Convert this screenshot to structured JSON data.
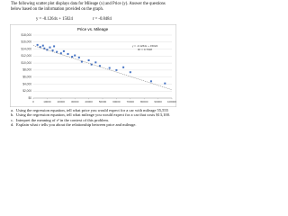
{
  "intro": "The following scatter plot displays data for Mileage (x) and Price (y).  Answer the questions below based on the information provided on the graph.",
  "equation": "y = -0.1264x + 15024",
  "correlation": "r = -0.8484",
  "chart_data": {
    "type": "scatter",
    "title": "Price vs. Mileage",
    "x": [
      3000,
      5000,
      7000,
      8000,
      10000,
      12000,
      14000,
      15000,
      17000,
      20000,
      22000,
      25000,
      28000,
      30000,
      33000,
      35000,
      40000,
      42000,
      45000,
      48000,
      55000,
      60000,
      65000,
      70000,
      85000,
      95000
    ],
    "series": [
      {
        "name": "Price",
        "color": "#4472c4",
        "values": [
          15200,
          14600,
          15000,
          14200,
          13800,
          14500,
          13600,
          14800,
          13200,
          12800,
          13400,
          12600,
          11800,
          12200,
          11600,
          10400,
          10800,
          9600,
          10200,
          9200,
          8600,
          8000,
          8800,
          7400,
          4800,
          4200
        ]
      }
    ],
    "trendline": {
      "slope": -0.1264,
      "intercept": 15024,
      "label": "y = -0.1264x + 15024",
      "r2_label": "R² = 0.7198"
    },
    "xlim": [
      0,
      100000
    ],
    "xticks": [
      0,
      10000,
      20000,
      30000,
      40000,
      50000,
      60000,
      70000,
      80000,
      90000,
      100000
    ],
    "ylim": [
      0,
      18000
    ],
    "yticks": [
      {
        "value": 0,
        "label": "$0"
      },
      {
        "value": 2000,
        "label": "$2,000"
      },
      {
        "value": 4000,
        "label": "$4,000"
      },
      {
        "value": 6000,
        "label": "$6,000"
      },
      {
        "value": 8000,
        "label": "$8,000"
      },
      {
        "value": 10000,
        "label": "$10,000"
      },
      {
        "value": 12000,
        "label": "$12,000"
      },
      {
        "value": 14000,
        "label": "$14,000"
      },
      {
        "value": 16000,
        "label": "$16,000"
      },
      {
        "value": 18000,
        "label": "$18,000"
      }
    ],
    "grid": true
  },
  "questions": [
    {
      "letter": "a.",
      "text": "Using the regression equation, tell what price you would expect for a car with mileage 55,555"
    },
    {
      "letter": "b.",
      "text": "Using the regression equation, tell what mileage you would expect for a car that costs $13,100."
    },
    {
      "letter": "c.",
      "text": "Interpret the meaning of r² in the context of this problem."
    },
    {
      "letter": "d.",
      "text": "Explain what r tells you about the relationship between price and mileage."
    }
  ]
}
